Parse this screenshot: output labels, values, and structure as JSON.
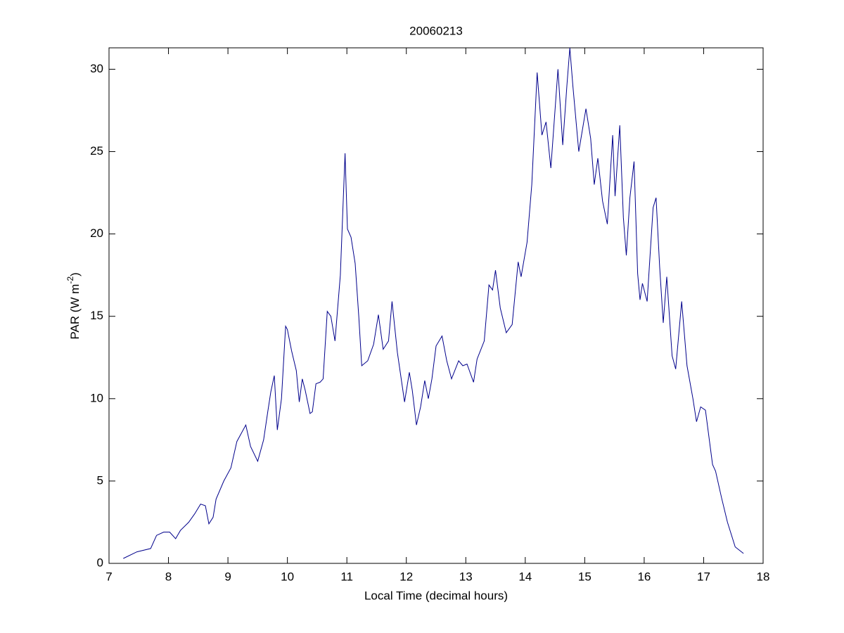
{
  "chart_data": {
    "type": "line",
    "title": "20060213",
    "xlabel": "Local Time (decimal hours)",
    "ylabel": {
      "text": "PAR (W m",
      "sup": "-2",
      "end": ")"
    },
    "x": [
      7.24,
      7.47,
      7.7,
      7.8,
      7.92,
      8.02,
      8.12,
      8.2,
      8.34,
      8.44,
      8.54,
      8.62,
      8.68,
      8.75,
      8.8,
      8.93,
      9.05,
      9.15,
      9.3,
      9.38,
      9.5,
      9.6,
      9.67,
      9.72,
      9.78,
      9.83,
      9.9,
      9.97,
      10.0,
      10.07,
      10.15,
      10.2,
      10.25,
      10.3,
      10.38,
      10.42,
      10.48,
      10.55,
      10.6,
      10.67,
      10.73,
      10.8,
      10.89,
      10.97,
      11.01,
      11.07,
      11.14,
      11.2,
      11.25,
      11.35,
      11.45,
      11.53,
      11.61,
      11.7,
      11.76,
      11.85,
      11.97,
      12.05,
      12.1,
      12.17,
      12.24,
      12.31,
      12.37,
      12.43,
      12.5,
      12.6,
      12.68,
      12.76,
      12.88,
      12.95,
      13.02,
      13.13,
      13.19,
      13.31,
      13.39,
      13.45,
      13.5,
      13.58,
      13.68,
      13.78,
      13.88,
      13.93,
      14.03,
      14.11,
      14.2,
      14.28,
      14.35,
      14.43,
      14.5,
      14.55,
      14.63,
      14.7,
      14.75,
      14.8,
      14.9,
      15.02,
      15.1,
      15.16,
      15.22,
      15.3,
      15.38,
      15.47,
      15.51,
      15.59,
      15.65,
      15.7,
      15.76,
      15.83,
      15.89,
      15.93,
      15.97,
      16.05,
      16.15,
      16.2,
      16.26,
      16.32,
      16.38,
      16.47,
      16.53,
      16.63,
      16.72,
      16.82,
      16.88,
      16.95,
      17.03,
      17.15,
      17.2,
      17.3,
      17.4,
      17.53,
      17.67
    ],
    "series": [
      {
        "name": "PAR",
        "color": "#00008b",
        "values": [
          0.3,
          0.7,
          0.9,
          1.7,
          1.9,
          1.9,
          1.5,
          2.0,
          2.5,
          3.0,
          3.6,
          3.5,
          2.4,
          2.8,
          3.9,
          5.0,
          5.8,
          7.4,
          8.4,
          7.1,
          6.2,
          7.5,
          9.2,
          10.4,
          11.4,
          8.1,
          10.0,
          14.4,
          14.2,
          12.9,
          11.7,
          9.8,
          11.2,
          10.5,
          9.1,
          9.2,
          10.9,
          11.0,
          11.2,
          15.3,
          15.0,
          13.5,
          17.5,
          24.9,
          20.3,
          19.8,
          18.2,
          15.0,
          12.0,
          12.3,
          13.3,
          15.1,
          13.0,
          13.5,
          15.9,
          12.8,
          9.8,
          11.6,
          10.5,
          8.4,
          9.5,
          11.1,
          10.0,
          11.2,
          13.2,
          13.8,
          12.3,
          11.2,
          12.3,
          12.0,
          12.1,
          11.0,
          12.4,
          13.5,
          16.9,
          16.6,
          17.8,
          15.5,
          14.0,
          14.5,
          18.3,
          17.4,
          19.5,
          23.0,
          29.8,
          26.0,
          26.8,
          24.0,
          27.5,
          30.0,
          25.4,
          29.0,
          31.3,
          29.0,
          25.0,
          27.6,
          25.8,
          23.0,
          24.6,
          22.0,
          20.6,
          26.0,
          22.3,
          26.6,
          21.0,
          18.7,
          22.2,
          24.4,
          17.6,
          16.0,
          17.0,
          15.9,
          21.6,
          22.2,
          18.0,
          14.6,
          17.4,
          12.6,
          11.8,
          15.9,
          12.0,
          10.0,
          8.6,
          9.5,
          9.3,
          6.0,
          5.6,
          4.0,
          2.5,
          1.0,
          0.6
        ]
      }
    ],
    "xlim": [
      7,
      18
    ],
    "ylim": [
      0,
      31.3
    ],
    "xticks": [
      7,
      8,
      9,
      10,
      11,
      12,
      13,
      14,
      15,
      16,
      17,
      18
    ],
    "yticks": [
      0,
      5,
      10,
      15,
      20,
      25,
      30
    ],
    "grid": false
  }
}
